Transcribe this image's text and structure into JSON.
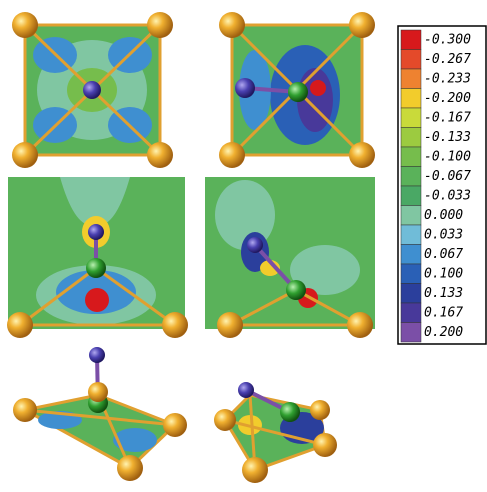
{
  "legend": {
    "entries": [
      {
        "color": "#d7191c",
        "label": "-0.300"
      },
      {
        "color": "#e44a2a",
        "label": "-0.267"
      },
      {
        "color": "#ee8230",
        "label": "-0.233"
      },
      {
        "color": "#f2cc2c",
        "label": "-0.200"
      },
      {
        "color": "#c9da3a",
        "label": "-0.167"
      },
      {
        "color": "#9ccb40",
        "label": "-0.133"
      },
      {
        "color": "#76bd4c",
        "label": "-0.100"
      },
      {
        "color": "#5ab25a",
        "label": "-0.067"
      },
      {
        "color": "#4aa865",
        "label": "-0.033"
      },
      {
        "color": "#80c6a2",
        "label": "0.000"
      },
      {
        "color": "#70bcd8",
        "label": "0.033"
      },
      {
        "color": "#3f8fd0",
        "label": "0.067"
      },
      {
        "color": "#2a60b6",
        "label": "0.100"
      },
      {
        "color": "#2b3f9c",
        "label": "0.133"
      },
      {
        "color": "#48399a",
        "label": "0.167"
      },
      {
        "color": "#7b4fa7",
        "label": "0.200"
      }
    ]
  }
}
